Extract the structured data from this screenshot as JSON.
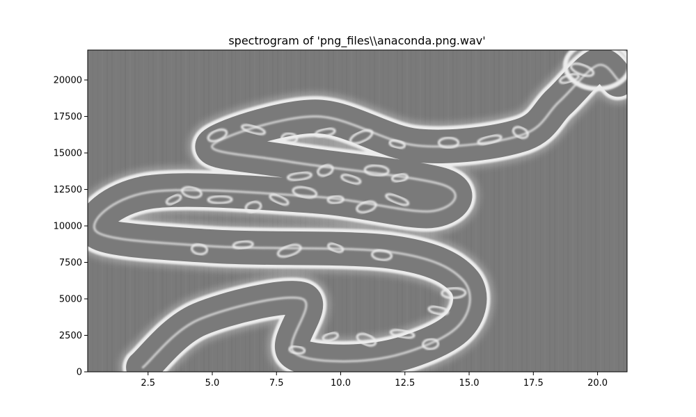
{
  "chart_data": {
    "type": "heatmap",
    "title": "spectrogram of 'png_files\\\\anaconda.png.wav'",
    "xlabel": "",
    "ylabel": "",
    "xlim": [
      0.15,
      21.15
    ],
    "ylim": [
      0,
      22050
    ],
    "xticks": [
      2.5,
      5.0,
      7.5,
      10.0,
      12.5,
      15.0,
      17.5,
      20.0
    ],
    "xtick_labels": [
      "2.5",
      "5.0",
      "7.5",
      "10.0",
      "12.5",
      "15.0",
      "17.5",
      "20.0"
    ],
    "yticks": [
      0,
      2500,
      5000,
      7500,
      10000,
      12500,
      15000,
      17500,
      20000
    ],
    "ytick_labels": [
      "0",
      "2500",
      "5000",
      "7500",
      "10000",
      "12500",
      "15000",
      "17500",
      "20000"
    ],
    "colormap": "grayscale",
    "background_color": "#7a7a7a",
    "highlight_color": "#ececec",
    "image_content": "anaconda-snake-outline",
    "snake_outline": {
      "centerline": [
        [
          2.3,
          300
        ],
        [
          4.5,
          3600
        ],
        [
          8.5,
          5000
        ],
        [
          8.2,
          1300
        ],
        [
          11.5,
          900
        ],
        [
          14.5,
          3000
        ],
        [
          14.8,
          6200
        ],
        [
          12.0,
          8200
        ],
        [
          5.0,
          8600
        ],
        [
          0.5,
          9600
        ],
        [
          2.5,
          12300
        ],
        [
          9.0,
          12000
        ],
        [
          13.5,
          11000
        ],
        [
          14.0,
          12800
        ],
        [
          8.0,
          14400
        ],
        [
          5.0,
          15500
        ],
        [
          9.0,
          17500
        ],
        [
          13.0,
          15500
        ],
        [
          17.0,
          16200
        ],
        [
          18.5,
          18500
        ],
        [
          20.0,
          21000
        ],
        [
          20.8,
          20000
        ]
      ],
      "body_width": 1200,
      "head_width": 2000,
      "scale_marks": [
        [
          3.5,
          11800
        ],
        [
          4.2,
          12300
        ],
        [
          5.3,
          11800
        ],
        [
          6.6,
          11300
        ],
        [
          7.6,
          11800
        ],
        [
          8.6,
          12300
        ],
        [
          9.8,
          11800
        ],
        [
          11.0,
          11300
        ],
        [
          12.2,
          11800
        ],
        [
          4.5,
          8400
        ],
        [
          6.2,
          8700
        ],
        [
          8.0,
          8300
        ],
        [
          9.8,
          8500
        ],
        [
          11.6,
          8000
        ],
        [
          8.4,
          13400
        ],
        [
          9.4,
          13800
        ],
        [
          10.4,
          13200
        ],
        [
          11.4,
          13800
        ],
        [
          12.3,
          13300
        ],
        [
          5.2,
          16200
        ],
        [
          6.6,
          16600
        ],
        [
          8.0,
          16000
        ],
        [
          9.4,
          16400
        ],
        [
          10.8,
          16100
        ],
        [
          12.2,
          15600
        ],
        [
          14.2,
          15700
        ],
        [
          15.8,
          15900
        ],
        [
          17.0,
          16400
        ],
        [
          13.8,
          4200
        ],
        [
          14.4,
          5400
        ],
        [
          9.6,
          2400
        ],
        [
          11.0,
          2200
        ],
        [
          12.4,
          2600
        ],
        [
          13.5,
          1900
        ],
        [
          18.9,
          20100
        ],
        [
          19.4,
          20700
        ],
        [
          8.3,
          1500
        ]
      ]
    }
  }
}
